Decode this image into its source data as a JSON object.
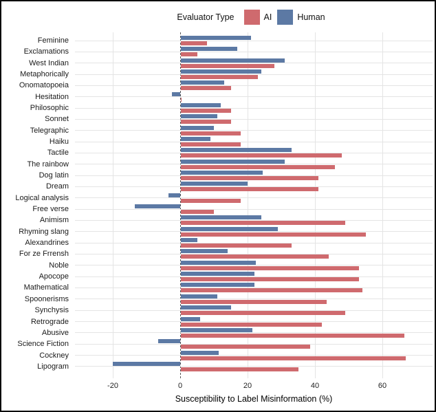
{
  "legend": {
    "title": "Evaluator Type"
  },
  "axis": {
    "x_label": "Susceptibility to Label Misinformation (%)",
    "x_ticks": [
      -20,
      0,
      20,
      40,
      60
    ]
  },
  "colors": {
    "ai": "#CF6A6E",
    "human": "#5C79A4",
    "gridline": "#e4e4e4",
    "zero_line": "#555555"
  },
  "chart_data": {
    "type": "bar",
    "orientation": "horizontal",
    "title": "",
    "xlabel": "Susceptibility to Label Misinformation (%)",
    "ylabel": "",
    "xlim": [
      -31,
      75
    ],
    "grid": true,
    "zero_line": "dashed",
    "legend_position": "top",
    "categories": [
      "Feminine",
      "Exclamations",
      "West Indian",
      "Metaphorically",
      "Onomatopoeia",
      "Hesitation",
      "Philosophic",
      "Sonnet",
      "Telegraphic",
      "Haiku",
      "Tactile",
      "The rainbow",
      "Dog latin",
      "Dream",
      "Logical analysis",
      "Free verse",
      "Animism",
      "Rhyming slang",
      "Alexandrines",
      "For ze Frrensh",
      "Noble",
      "Apocope",
      "Mathematical",
      "Spoonerisms",
      "Synchysis",
      "Retrograde",
      "Abusive",
      "Science Fiction",
      "Cockney",
      "Lipogram"
    ],
    "series": [
      {
        "name": "AI",
        "color": "#CF6A6E",
        "values": [
          8,
          5,
          28,
          23,
          15,
          0.5,
          15,
          15,
          18,
          18,
          48,
          46,
          41,
          41,
          18,
          10,
          49,
          55,
          33,
          44,
          53,
          53,
          54,
          43.5,
          49,
          42,
          66.5,
          38.5,
          67,
          35
        ]
      },
      {
        "name": "Human",
        "color": "#5C79A4",
        "values": [
          21,
          17,
          31,
          24,
          13,
          -2.5,
          12,
          11,
          10,
          9,
          33,
          31,
          24.5,
          20,
          -3.5,
          -13.5,
          24,
          29,
          5,
          14,
          22.5,
          22,
          22,
          11,
          15,
          6,
          21.5,
          -6.5,
          11.5,
          -20
        ]
      }
    ]
  }
}
